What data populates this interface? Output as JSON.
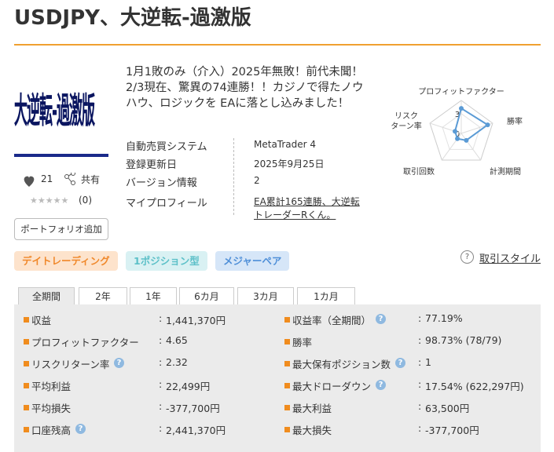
{
  "header": {
    "title": "USDJPY、大逆転-過激版"
  },
  "product": {
    "image_text": "大逆転-過激版",
    "likes": "21",
    "share": "共有",
    "rating_stars": "★★★★★",
    "rating_count": "(0)",
    "portfolio_button": "ポートフォリオ追加",
    "description": "1月1敗のみ（介入）2025年無敗！前代未聞！2/3現在、驚異の74連勝！！カジノで得たノウハウ、ロジックを EAに落とし込みました！",
    "info": [
      {
        "label": "自動売買システム",
        "value": "MetaTrader 4"
      },
      {
        "label": "登録更新日",
        "value": "2025年9月25日"
      },
      {
        "label": "バージョン情報",
        "value": "2"
      },
      {
        "label": "マイプロフィール",
        "value": "EA累計165連勝、大逆転トレーダーRくん。",
        "link": true
      }
    ]
  },
  "chart_data": {
    "type": "radar",
    "axes": [
      "プロフィットファクター",
      "勝率",
      "計測期間",
      "取引回数",
      [
        "リスク",
        "ターン率"
      ]
    ],
    "values": [
      3.8,
      4.2,
      1.3,
      1,
      1
    ],
    "rlim": [
      0,
      5
    ],
    "rticks": [
      0,
      3
    ],
    "color": "#5b9bd5"
  },
  "tags": [
    {
      "label": "デイトレーディング",
      "color": "#f0882a",
      "bg": "#fde3cc"
    },
    {
      "label": "1ポジション型",
      "color": "#5cc0c8",
      "bg": "#d9f1f3"
    },
    {
      "label": "メジャーペア",
      "color": "#4f8fd8",
      "bg": "#d6e6f8"
    }
  ],
  "trade_style": {
    "icon": "?",
    "label": "取引スタイル"
  },
  "tabs": [
    "全期間",
    "2年",
    "1年",
    "6カ月",
    "3カ月",
    "1カ月"
  ],
  "active_tab": 0,
  "stats": {
    "separator": ":",
    "help_icon": "?",
    "left": [
      {
        "label": "収益",
        "value": "1,441,370円"
      },
      {
        "label": "プロフィットファクター",
        "value": "4.65"
      },
      {
        "label": "リスクリターン率",
        "value": "2.32",
        "help": true
      },
      {
        "label": "平均利益",
        "value": "22,499円"
      },
      {
        "label": "平均損失",
        "value": "-377,700円"
      },
      {
        "label": "口座残高",
        "value": "2,441,370円",
        "help": true
      }
    ],
    "right": [
      {
        "label": "収益率（全期間）",
        "value": "77.19%",
        "help": true
      },
      {
        "label": "勝率",
        "value": "98.73% (78/79)"
      },
      {
        "label": "最大保有ポジション数",
        "value": "1",
        "help": true
      },
      {
        "label": "最大ドローダウン",
        "value": "17.54% (622,297円)",
        "help": true
      },
      {
        "label": "最大利益",
        "value": "63,500円"
      },
      {
        "label": "最大損失",
        "value": "-377,700円"
      }
    ]
  }
}
